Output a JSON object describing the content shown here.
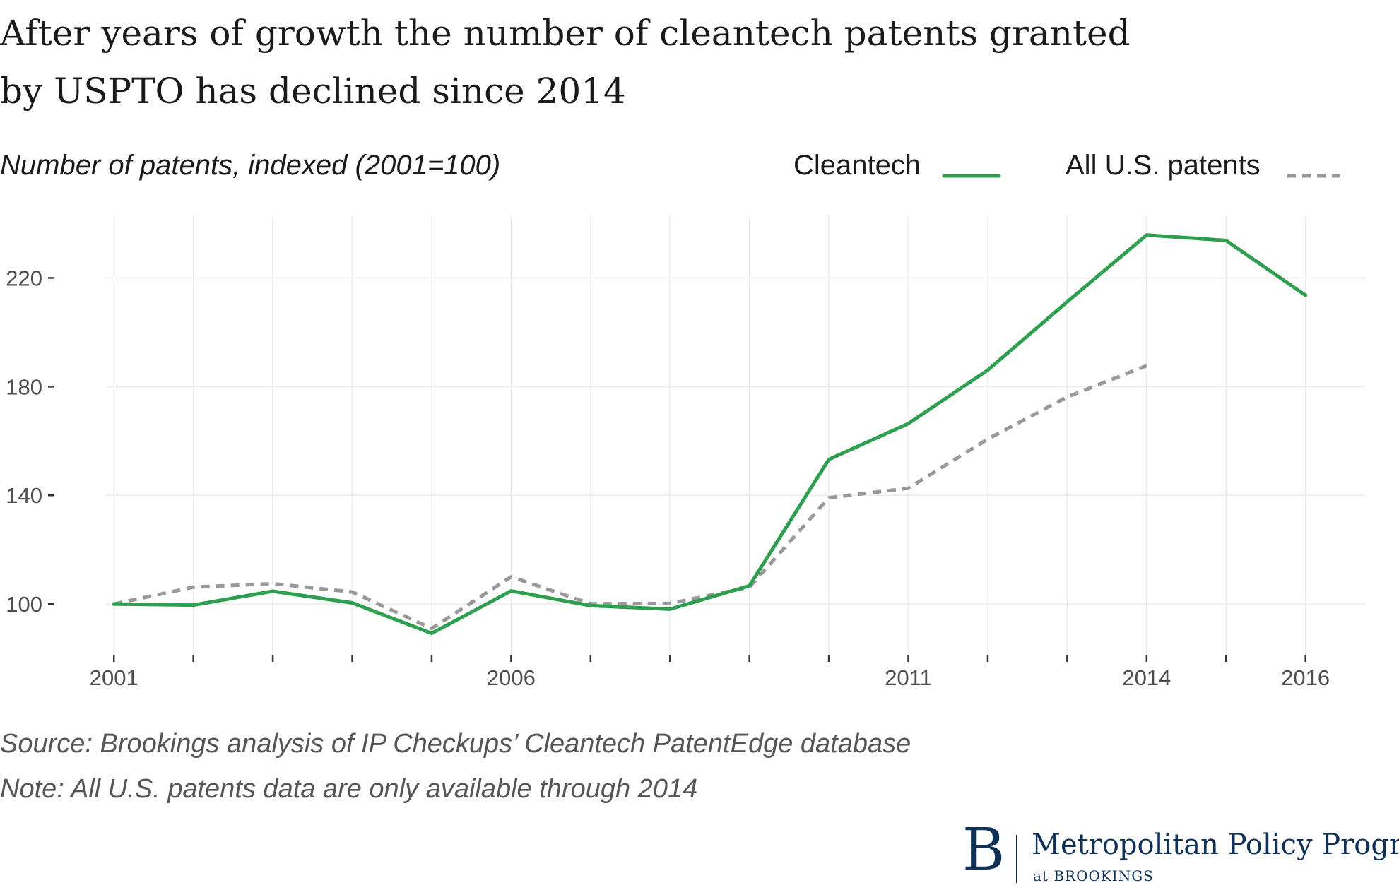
{
  "header": {
    "title_line1": "After years of growth the number of cleantech patents granted",
    "title_line2": "by USPTO has declined since 2014"
  },
  "footer": {
    "source": "Source: Brookings analysis of IP Checkups’ Cleantech PatentEdge database",
    "note": "Note: All U.S. patents data are only available through 2014"
  },
  "branding": {
    "logo_letter": "B",
    "program": "Metropolitan Policy Program",
    "org": "at BROOKINGS"
  },
  "chart_data": {
    "type": "line",
    "title": "After years of growth the number of cleantech patents granted by USPTO has declined since 2014",
    "ylabel": "Number of patents, indexed (2001=100)",
    "xlabel": "",
    "xlim": [
      2000.9,
      2016.75
    ],
    "ylim": [
      80,
      243
    ],
    "x_ticks": [
      2001,
      2002,
      2003,
      2004,
      2005,
      2006,
      2007,
      2008,
      2009,
      2010,
      2011,
      2012,
      2013,
      2014,
      2015,
      2016
    ],
    "x_tick_labels": [
      {
        "x": 2001,
        "label": "2001"
      },
      {
        "x": 2006,
        "label": "2006"
      },
      {
        "x": 2011,
        "label": "2011"
      },
      {
        "x": 2014,
        "label": "2014"
      },
      {
        "x": 2016,
        "label": "2016"
      }
    ],
    "y_ticks": [
      100,
      140,
      180,
      220
    ],
    "y_tick_labels": [
      "100",
      "140",
      "180",
      "220"
    ],
    "grid": true,
    "legend_position": "top-right",
    "series": [
      {
        "name": "Cleantech",
        "color": "#2e9e4f",
        "style": "solid",
        "x": [
          2001,
          2002,
          2003,
          2004,
          2005,
          2006,
          2007,
          2008,
          2009,
          2010,
          2011,
          2012,
          2013,
          2014,
          2015,
          2016
        ],
        "y": [
          100,
          99.6,
          104.7,
          100.4,
          89.2,
          104.8,
          99.4,
          98.1,
          106.7,
          153.2,
          166.4,
          186.1,
          211.2,
          235.8,
          233.8,
          213.6
        ]
      },
      {
        "name": "All U.S. patents",
        "color": "#999999",
        "style": "dashed",
        "x": [
          2001,
          2002,
          2003,
          2004,
          2005,
          2006,
          2007,
          2008,
          2009,
          2010,
          2011,
          2012,
          2013,
          2014
        ],
        "y": [
          100,
          106.2,
          107.5,
          104.4,
          91.0,
          110.0,
          100.1,
          100.2,
          106.2,
          139.1,
          142.6,
          160.7,
          176.2,
          187.7
        ]
      }
    ]
  }
}
